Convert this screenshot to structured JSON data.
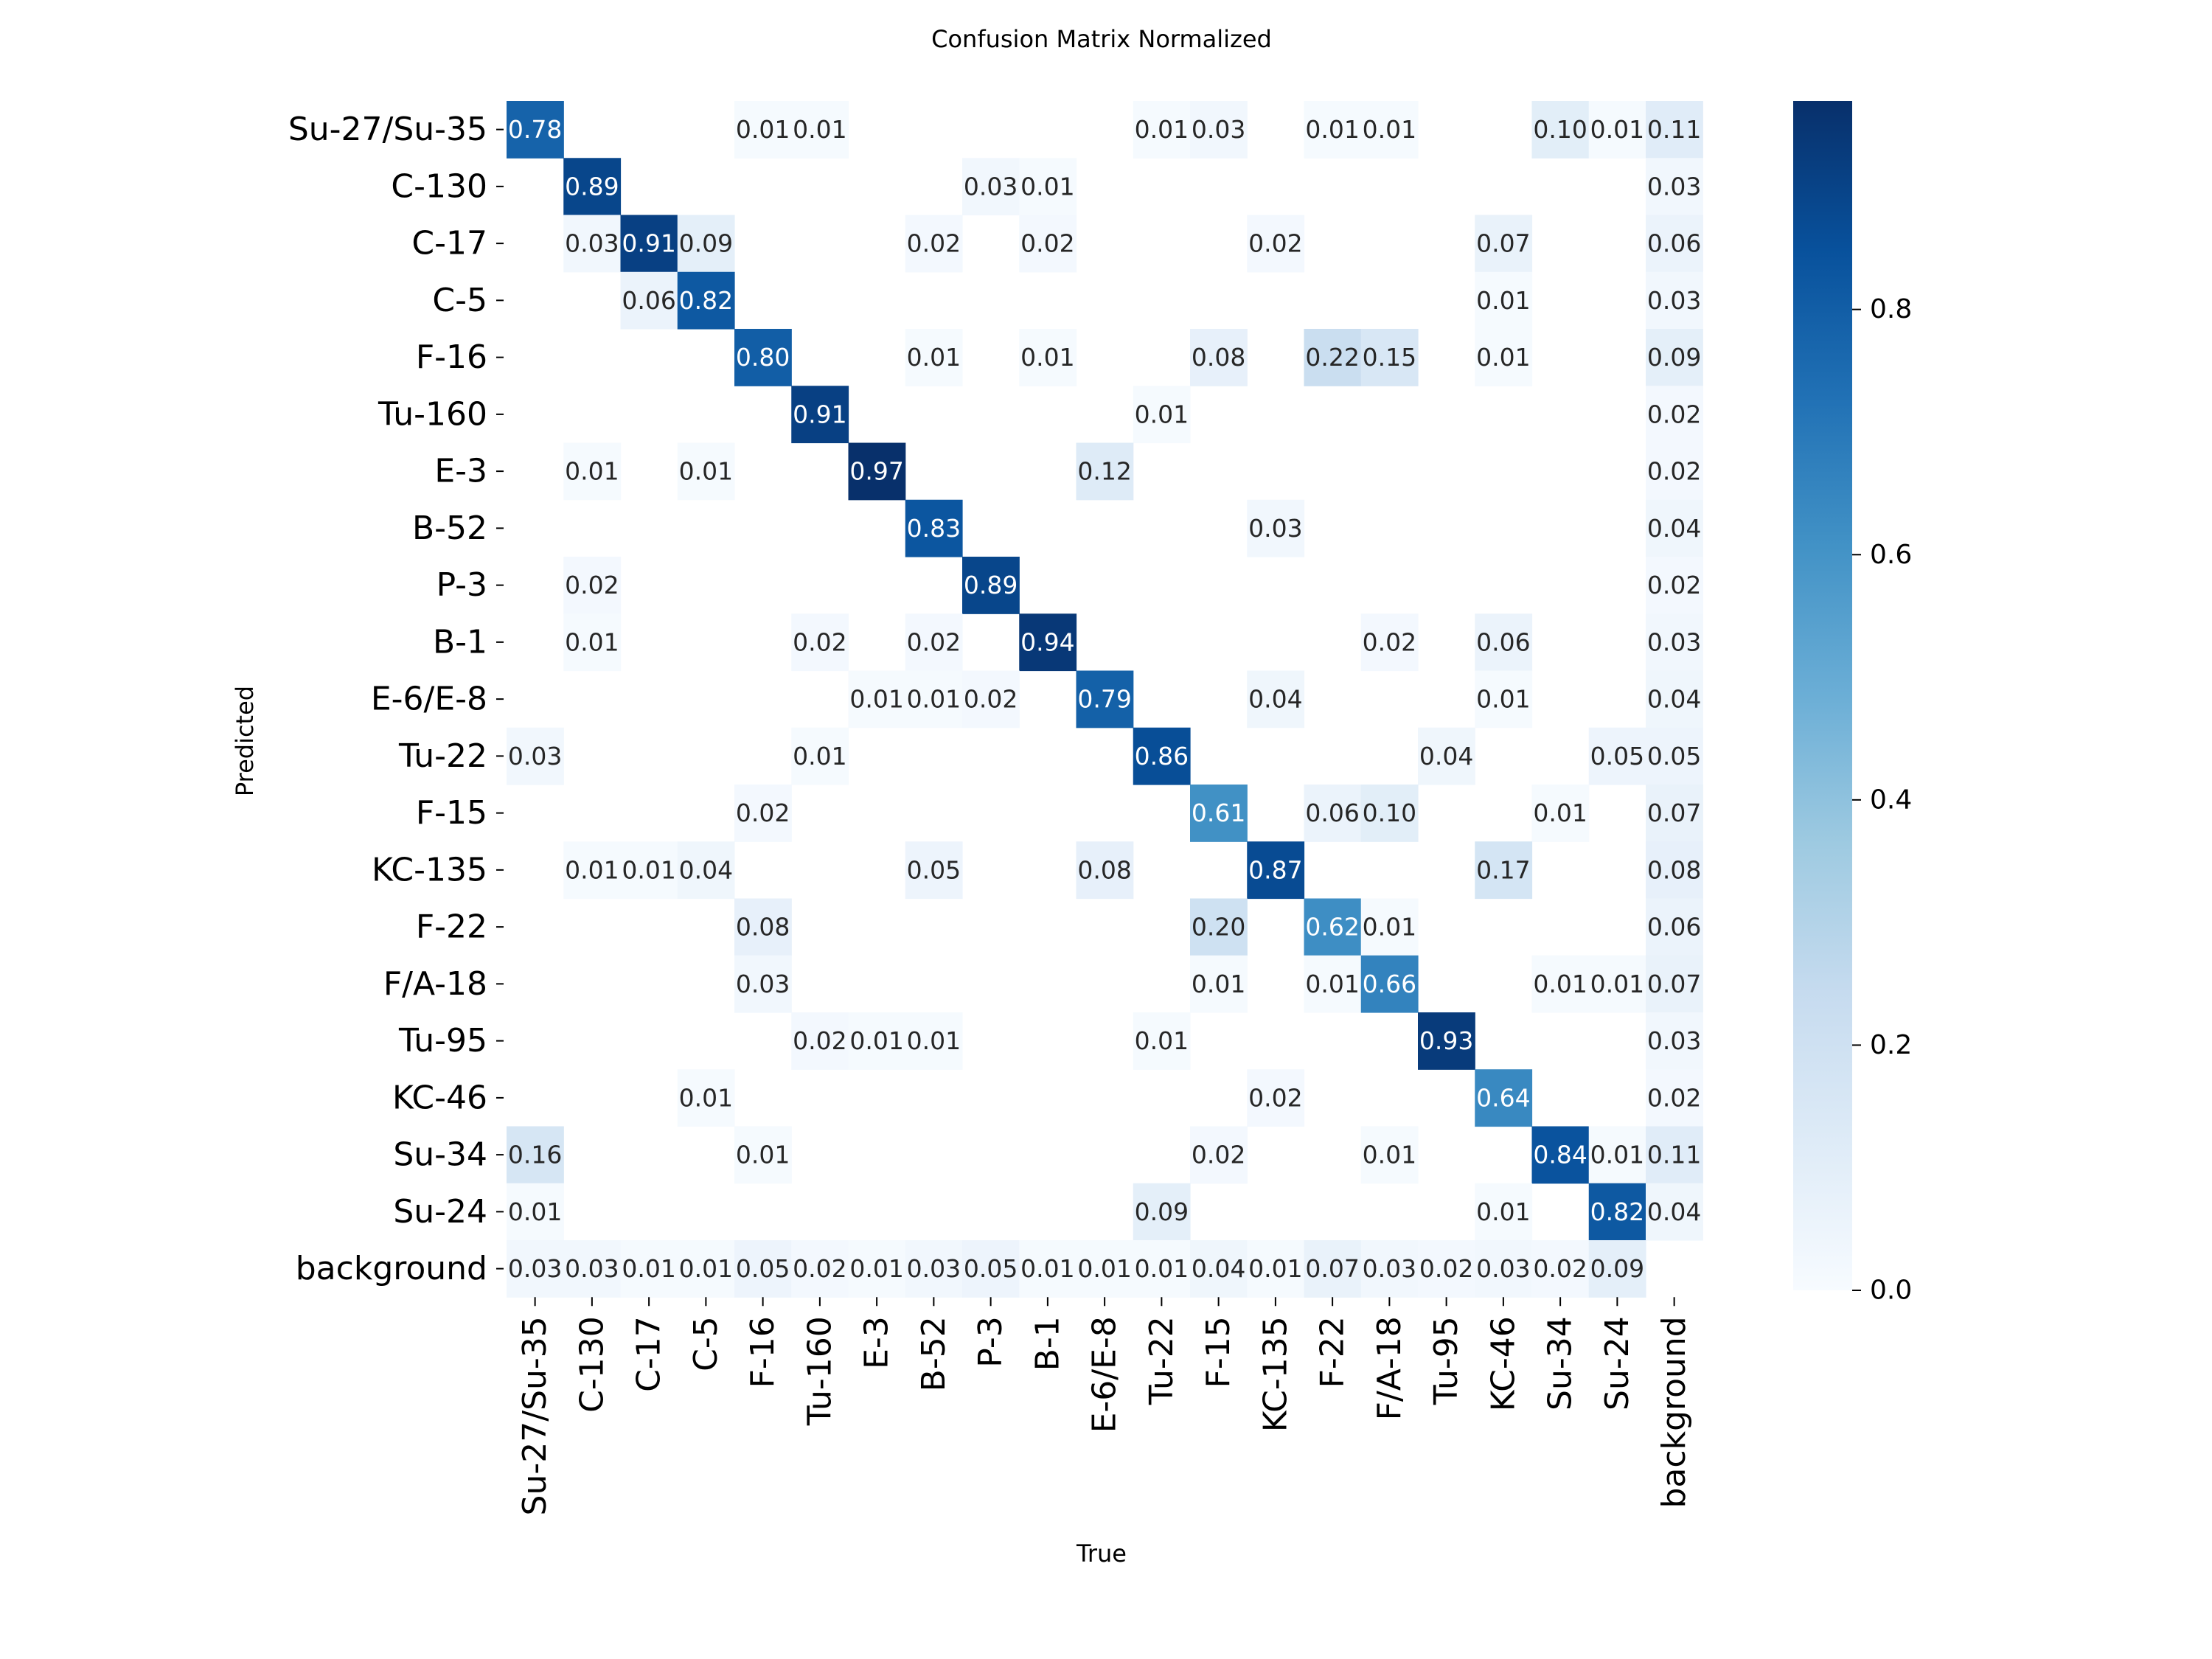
{
  "chart_data": {
    "type": "heatmap",
    "title": "Confusion Matrix Normalized",
    "xlabel": "True",
    "ylabel": "Predicted",
    "x_categories": [
      "Su-27/Su-35",
      "C-130",
      "C-17",
      "C-5",
      "F-16",
      "Tu-160",
      "E-3",
      "B-52",
      "P-3",
      "B-1",
      "E-6/E-8",
      "Tu-22",
      "F-15",
      "KC-135",
      "F-22",
      "F/A-18",
      "Tu-95",
      "KC-46",
      "Su-34",
      "Su-24",
      "background"
    ],
    "y_categories": [
      "Su-27/Su-35",
      "C-130",
      "C-17",
      "C-5",
      "F-16",
      "Tu-160",
      "E-3",
      "B-52",
      "P-3",
      "B-1",
      "E-6/E-8",
      "Tu-22",
      "F-15",
      "KC-135",
      "F-22",
      "F/A-18",
      "Tu-95",
      "KC-46",
      "Su-34",
      "Su-24",
      "background"
    ],
    "values": [
      [
        0.78,
        0,
        0,
        0,
        0.01,
        0.01,
        0,
        0,
        0,
        0,
        0,
        0.01,
        0.03,
        0,
        0.01,
        0.01,
        0,
        0,
        0.1,
        0.01,
        0.11
      ],
      [
        0,
        0.89,
        0,
        0,
        0,
        0,
        0,
        0,
        0.03,
        0.01,
        0,
        0,
        0,
        0,
        0,
        0,
        0,
        0,
        0,
        0,
        0.03
      ],
      [
        0,
        0.03,
        0.91,
        0.09,
        0,
        0,
        0,
        0.02,
        0,
        0.02,
        0,
        0,
        0,
        0.02,
        0,
        0,
        0,
        0.07,
        0,
        0,
        0.06
      ],
      [
        0,
        0,
        0.06,
        0.82,
        0,
        0,
        0,
        0,
        0,
        0,
        0,
        0,
        0,
        0,
        0,
        0,
        0,
        0.01,
        0,
        0,
        0.03
      ],
      [
        0,
        0,
        0,
        0,
        0.8,
        0,
        0,
        0.01,
        0,
        0.01,
        0,
        0,
        0.08,
        0,
        0.22,
        0.15,
        0,
        0.01,
        0,
        0,
        0.09
      ],
      [
        0,
        0,
        0,
        0,
        0,
        0.91,
        0,
        0,
        0,
        0,
        0,
        0.01,
        0,
        0,
        0,
        0,
        0,
        0,
        0,
        0,
        0.02
      ],
      [
        0,
        0.01,
        0,
        0.01,
        0,
        0,
        0.97,
        0,
        0,
        0,
        0.12,
        0,
        0,
        0,
        0,
        0,
        0,
        0,
        0,
        0,
        0.02
      ],
      [
        0,
        0,
        0,
        0,
        0,
        0,
        0,
        0.83,
        0,
        0,
        0,
        0,
        0,
        0.03,
        0,
        0,
        0,
        0,
        0,
        0,
        0.04
      ],
      [
        0,
        0.02,
        0,
        0,
        0,
        0,
        0,
        0,
        0.89,
        0,
        0,
        0,
        0,
        0,
        0,
        0,
        0,
        0,
        0,
        0,
        0.02
      ],
      [
        0,
        0.01,
        0,
        0,
        0,
        0.02,
        0,
        0.02,
        0,
        0.94,
        0,
        0,
        0,
        0,
        0,
        0.02,
        0,
        0.06,
        0,
        0,
        0.03
      ],
      [
        0,
        0,
        0,
        0,
        0,
        0,
        0.01,
        0.01,
        0.02,
        0,
        0.79,
        0,
        0,
        0.04,
        0,
        0,
        0,
        0.01,
        0,
        0,
        0.04
      ],
      [
        0.03,
        0,
        0,
        0,
        0,
        0.01,
        0,
        0,
        0,
        0,
        0,
        0.86,
        0,
        0,
        0,
        0,
        0.04,
        0,
        0,
        0.05,
        0.05
      ],
      [
        0,
        0,
        0,
        0,
        0.02,
        0,
        0,
        0,
        0,
        0,
        0,
        0,
        0.61,
        0,
        0.06,
        0.1,
        0,
        0,
        0.01,
        0,
        0.07
      ],
      [
        0,
        0.01,
        0.01,
        0.04,
        0,
        0,
        0,
        0.05,
        0,
        0,
        0.08,
        0,
        0,
        0.87,
        0,
        0,
        0,
        0.17,
        0,
        0,
        0.08
      ],
      [
        0,
        0,
        0,
        0,
        0.08,
        0,
        0,
        0,
        0,
        0,
        0,
        0,
        0.2,
        0,
        0.62,
        0.01,
        0,
        0,
        0,
        0,
        0.06
      ],
      [
        0,
        0,
        0,
        0,
        0.03,
        0,
        0,
        0,
        0,
        0,
        0,
        0,
        0.01,
        0,
        0.01,
        0.66,
        0,
        0,
        0.01,
        0.01,
        0.07
      ],
      [
        0,
        0,
        0,
        0,
        0,
        0.02,
        0.01,
        0.01,
        0,
        0,
        0,
        0.01,
        0,
        0,
        0,
        0,
        0.93,
        0,
        0,
        0,
        0.03
      ],
      [
        0,
        0,
        0,
        0.01,
        0,
        0,
        0,
        0,
        0,
        0,
        0,
        0,
        0,
        0.02,
        0,
        0,
        0,
        0.64,
        0,
        0,
        0.02
      ],
      [
        0.16,
        0,
        0,
        0,
        0.01,
        0,
        0,
        0,
        0,
        0,
        0,
        0,
        0.02,
        0,
        0,
        0.01,
        0,
        0,
        0.84,
        0.01,
        0.11
      ],
      [
        0.01,
        0,
        0,
        0,
        0,
        0,
        0,
        0,
        0,
        0,
        0,
        0.09,
        0,
        0,
        0,
        0,
        0,
        0.01,
        0,
        0.82,
        0.04
      ],
      [
        0.03,
        0.03,
        0.01,
        0.01,
        0.05,
        0.02,
        0.01,
        0.03,
        0.05,
        0.01,
        0.01,
        0.01,
        0.04,
        0.01,
        0.07,
        0.03,
        0.02,
        0.03,
        0.02,
        0.09,
        0
      ]
    ],
    "value_range": [
      0.0,
      0.97
    ],
    "colormap": "Blues",
    "colorbar_ticks": [
      "0.0",
      "0.2",
      "0.4",
      "0.6",
      "0.8"
    ],
    "colorbar_tick_values": [
      0.0,
      0.2,
      0.4,
      0.6,
      0.8
    ],
    "legend_placement": "right",
    "grid": false
  }
}
